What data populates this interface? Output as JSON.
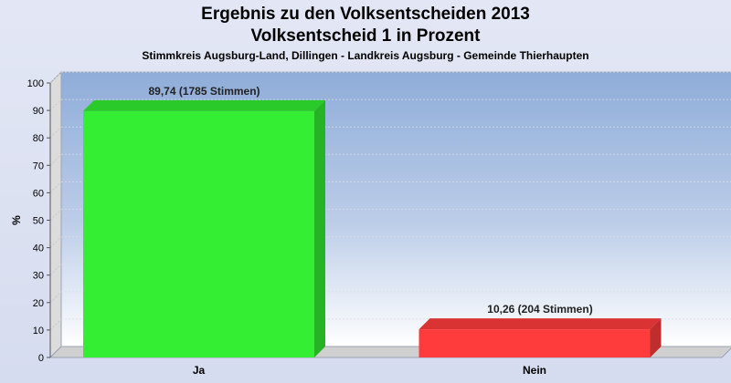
{
  "chart_data": {
    "type": "bar",
    "title": "Ergebnis zu den Volksentscheiden 2013",
    "title_line2": "Volksentscheid 1 in Prozent",
    "subtitle": "Stimmkreis Augsburg-Land, Dillingen - Landkreis Augsburg - Gemeinde Thierhaupten",
    "categories": [
      "Ja",
      "Nein"
    ],
    "values": [
      89.74,
      10.26
    ],
    "data_labels": [
      "89,74 (1785 Stimmen)",
      "10,26 (204 Stimmen)"
    ],
    "colors": [
      "#33ee33",
      "#ff3c3c"
    ],
    "ylabel": "%",
    "xlabel": "",
    "ylim": [
      0,
      100
    ],
    "yticks": [
      "0",
      "10",
      "20",
      "30",
      "40",
      "50",
      "60",
      "70",
      "80",
      "90",
      "100"
    ],
    "grid": true
  }
}
